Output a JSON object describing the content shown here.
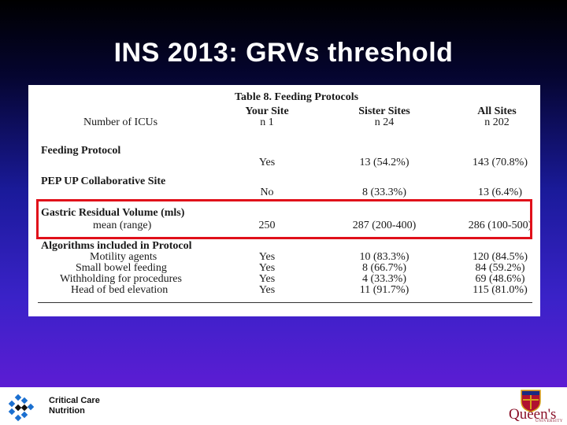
{
  "slide": {
    "title": "INS 2013: GRVs threshold"
  },
  "table": {
    "title": "Table 8. Feeding Protocols",
    "col_headers": {
      "your_site": "Your Site",
      "sister_sites": "Sister Sites",
      "all_sites": "All Sites"
    },
    "number_of_icus": {
      "label": "Number of ICUs",
      "your_site": "n 1",
      "sister_sites": "n 24",
      "all_sites": "n 202"
    },
    "feeding_protocol": {
      "label": "Feeding Protocol",
      "your_site": "Yes",
      "sister_sites": "13 (54.2%)",
      "all_sites": "143 (70.8%)"
    },
    "pep_up": {
      "label": "PEP UP Collaborative Site",
      "your_site": "No",
      "sister_sites": "8 (33.3%)",
      "all_sites": "13 (6.4%)"
    },
    "grv": {
      "label": "Gastric Residual Volume (mls)",
      "sublabel": "mean (range)",
      "your_site": "250",
      "sister_sites": "287 (200-400)",
      "all_sites": "286 (100-500)"
    },
    "algorithms": {
      "label": "Algorithms included in Protocol",
      "rows": [
        {
          "label": "Motility agents",
          "your_site": "Yes",
          "sister_sites": "10 (83.3%)",
          "all_sites": "120 (84.5%)"
        },
        {
          "label": "Small bowel feeding",
          "your_site": "Yes",
          "sister_sites": "8 (66.7%)",
          "all_sites": "84 (59.2%)"
        },
        {
          "label": "Withholding for procedures",
          "your_site": "Yes",
          "sister_sites": "4 (33.3%)",
          "all_sites": "69 (48.6%)"
        },
        {
          "label": "Head of bed elevation",
          "your_site": "Yes",
          "sister_sites": "11 (91.7%)",
          "all_sites": "115 (81.0%)"
        }
      ]
    }
  },
  "footer": {
    "left_logo_line1": "Critical Care",
    "left_logo_line2": "Nutrition",
    "right_logo_text": "Queen's",
    "right_logo_subtext": "UNIVERSITY",
    "highlight_color": "#e0101a"
  }
}
